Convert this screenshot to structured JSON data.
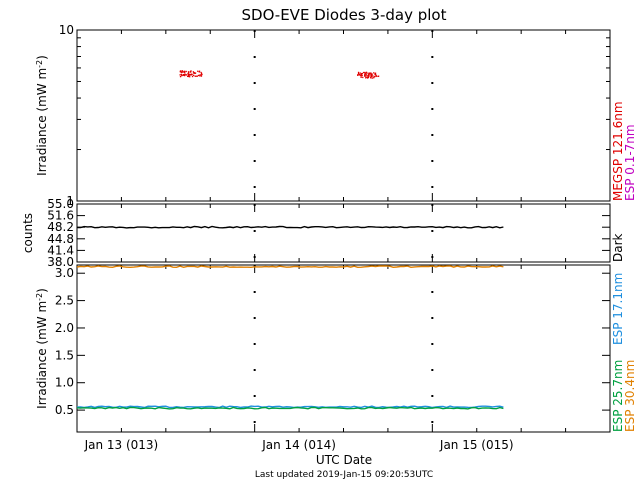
{
  "title": "SDO-EVE Diodes 3-day plot",
  "xlabel": "UTC Date",
  "footer": "Last updated 2019-Jan-15 09:20:53UTC",
  "x_ticks": [
    {
      "day": 0,
      "label": "Jan 13 (013)"
    },
    {
      "day": 1,
      "label": "Jan 14 (014)"
    },
    {
      "day": 2,
      "label": "Jan 15 (015)"
    }
  ],
  "colors": {
    "megsp": "#e00000",
    "esp_0_1_7": "#c000c0",
    "dark": "#000000",
    "esp_17_1": "#1f8fdf",
    "esp_25_7": "#00a040",
    "esp_30_4": "#e08000"
  },
  "chart_data": [
    {
      "type": "scatter",
      "panel": "top",
      "ylabel": "Irradiance (mW m",
      "ylabel_sup": "-2",
      "ylabel_end": ")",
      "yscale": "log",
      "ylim": [
        1,
        10
      ],
      "xlim_days": [
        0,
        3
      ],
      "y_ticks": [
        {
          "value": 1,
          "label": "1"
        },
        {
          "value": 10,
          "label": "10"
        }
      ],
      "series": [
        {
          "name": "MEGSP 121.6nm",
          "color": "#e00000",
          "clusters": [
            {
              "x_start": 0.575,
              "x_end": 0.7,
              "y": 5.6
            },
            {
              "x_start": 1.575,
              "x_end": 1.7,
              "y": 5.5
            }
          ]
        },
        {
          "name": "ESP 0.1-7nm",
          "color": "#c000c0",
          "clusters": []
        }
      ]
    },
    {
      "type": "line",
      "panel": "middle",
      "ylabel": "counts",
      "ylim": [
        38.0,
        55.0
      ],
      "xlim_days": [
        0,
        3
      ],
      "y_ticks": [
        {
          "value": 55.0,
          "label": "55.0"
        },
        {
          "value": 51.6,
          "label": "51.6"
        },
        {
          "value": 48.2,
          "label": "48.2"
        },
        {
          "value": 44.8,
          "label": "44.8"
        },
        {
          "value": 41.4,
          "label": "41.4"
        },
        {
          "value": 38.0,
          "label": "38.0"
        }
      ],
      "series": [
        {
          "name": "Dark",
          "color": "#000000",
          "x_start": 0,
          "x_end": 2.4,
          "y": 48.2
        }
      ]
    },
    {
      "type": "line",
      "panel": "bottom",
      "ylabel": "Irradiance (mW m",
      "ylabel_sup": "-2",
      "ylabel_end": ")",
      "ylim": [
        0.1,
        3.15
      ],
      "xlim_days": [
        0,
        3
      ],
      "y_ticks": [
        {
          "value": 0.5,
          "label": "0.5"
        },
        {
          "value": 1.0,
          "label": "1.0"
        },
        {
          "value": 1.5,
          "label": "1.5"
        },
        {
          "value": 2.0,
          "label": "2.0"
        },
        {
          "value": 2.5,
          "label": "2.5"
        },
        {
          "value": 3.0,
          "label": "3.0"
        }
      ],
      "series": [
        {
          "name": "ESP 17.1nm",
          "color": "#1f8fdf",
          "x_start": 0,
          "x_end": 2.4,
          "y": 0.56
        },
        {
          "name": "ESP 25.7nm",
          "color": "#00a040",
          "x_start": 0,
          "x_end": 2.4,
          "y": 0.535
        },
        {
          "name": "ESP 30.4nm",
          "color": "#e08000",
          "x_start": 0,
          "x_end": 2.4,
          "y": 3.12
        }
      ]
    }
  ]
}
